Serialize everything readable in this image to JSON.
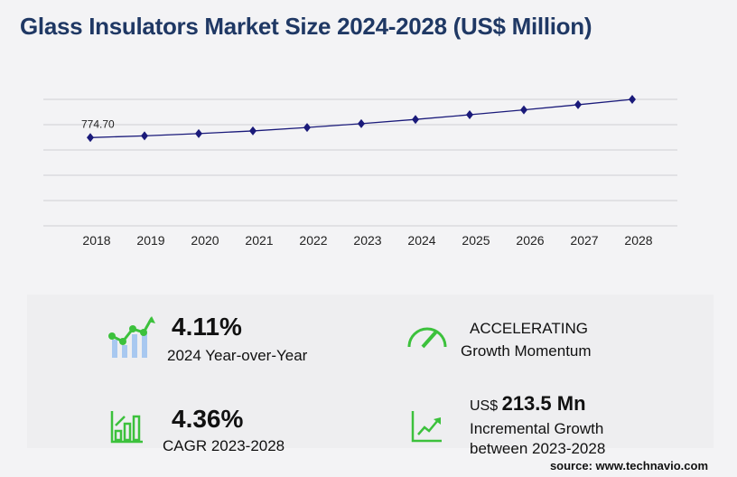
{
  "title": "Glass Insulators Market Size 2024-2028 (US$ Million)",
  "chart_data": {
    "type": "line",
    "categories": [
      "2018",
      "2019",
      "2020",
      "2021",
      "2022",
      "2023",
      "2024",
      "2025",
      "2026",
      "2027",
      "2028"
    ],
    "values": [
      774.7,
      790,
      810,
      833,
      863,
      897,
      934,
      975,
      1018,
      1063,
      1110
    ],
    "data_labels": {
      "2018": "774.70"
    },
    "ylim": [
      0,
      1110
    ],
    "grid": true,
    "line_color": "#1a1a7a",
    "marker": "diamond"
  },
  "stats": {
    "yoy_value": "4.11%",
    "yoy_label": "2024 Year-over-Year",
    "momentum_value": "ACCELERATING",
    "momentum_label": "Growth Momentum",
    "cagr_value": "4.36%",
    "cagr_label": "CAGR 2023-2028",
    "incr_prefix": "US$",
    "incr_value": "213.5 Mn",
    "incr_label1": "Incremental Growth",
    "incr_label2": "between 2023-2028"
  },
  "source": "source: www.technavio.com",
  "colors": {
    "accent_green": "#3cc13c",
    "title": "#1f3864",
    "bar_blue": "#a8c8f0"
  }
}
